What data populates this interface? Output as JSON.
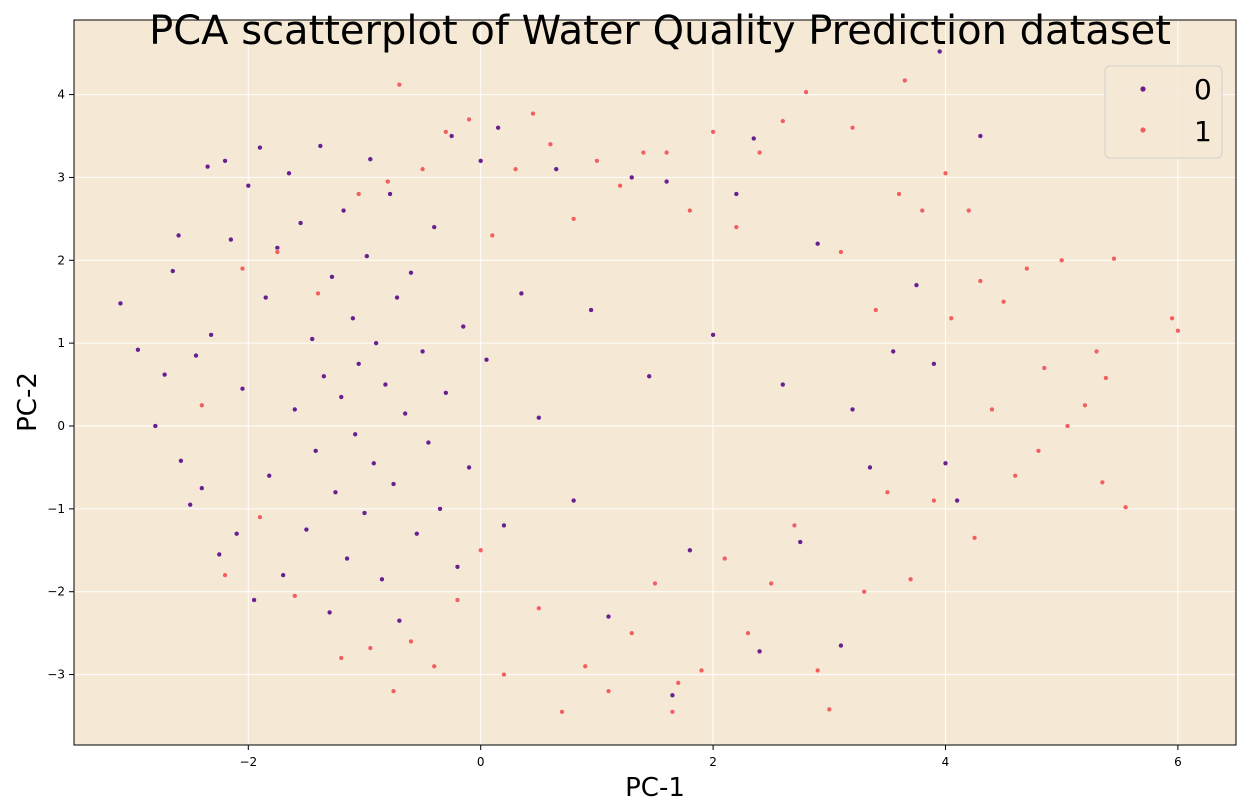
{
  "chart_data": {
    "type": "scatter",
    "title": "PCA scatterplot of Water Quality Prediction dataset",
    "xlabel": "PC-1",
    "ylabel": "PC-2",
    "xlim": [
      -3.5,
      6.5
    ],
    "ylim": [
      -3.85,
      4.9
    ],
    "xticks": [
      -2,
      0,
      2,
      4,
      6
    ],
    "xtick_labels": [
      "−2",
      "0",
      "2",
      "4",
      "6"
    ],
    "yticks": [
      -3,
      -2,
      -1,
      0,
      1,
      2,
      3,
      4
    ],
    "ytick_labels": [
      "−3",
      "−2",
      "−1",
      "0",
      "1",
      "2",
      "3",
      "4"
    ],
    "grid": true,
    "background_color": "#f5e8d5",
    "legend_placement": "top-right",
    "series": [
      {
        "name": "0",
        "color": "#6a1f8a",
        "points": [
          [
            -3.1,
            1.48
          ],
          [
            -2.95,
            0.92
          ],
          [
            -2.8,
            0.0
          ],
          [
            -2.72,
            0.62
          ],
          [
            -2.65,
            1.87
          ],
          [
            -2.6,
            2.3
          ],
          [
            -2.58,
            -0.42
          ],
          [
            -2.5,
            -0.95
          ],
          [
            -2.45,
            0.85
          ],
          [
            -2.4,
            -0.75
          ],
          [
            -2.35,
            3.13
          ],
          [
            -2.32,
            1.1
          ],
          [
            -2.25,
            -1.55
          ],
          [
            -2.2,
            3.2
          ],
          [
            -2.15,
            2.25
          ],
          [
            -2.1,
            -1.3
          ],
          [
            -2.05,
            0.45
          ],
          [
            -2.0,
            2.9
          ],
          [
            -1.95,
            -2.1
          ],
          [
            -1.9,
            3.36
          ],
          [
            -1.85,
            1.55
          ],
          [
            -1.82,
            -0.6
          ],
          [
            -1.75,
            2.15
          ],
          [
            -1.7,
            -1.8
          ],
          [
            -1.65,
            3.05
          ],
          [
            -1.6,
            0.2
          ],
          [
            -1.55,
            2.45
          ],
          [
            -1.5,
            -1.25
          ],
          [
            -1.45,
            1.05
          ],
          [
            -1.42,
            -0.3
          ],
          [
            -1.38,
            3.38
          ],
          [
            -1.35,
            0.6
          ],
          [
            -1.3,
            -2.25
          ],
          [
            -1.28,
            1.8
          ],
          [
            -1.25,
            -0.8
          ],
          [
            -1.2,
            0.35
          ],
          [
            -1.18,
            2.6
          ],
          [
            -1.15,
            -1.6
          ],
          [
            -1.1,
            1.3
          ],
          [
            -1.08,
            -0.1
          ],
          [
            -1.05,
            0.75
          ],
          [
            -1.0,
            -1.05
          ],
          [
            -0.98,
            2.05
          ],
          [
            -0.95,
            3.22
          ],
          [
            -0.92,
            -0.45
          ],
          [
            -0.9,
            1.0
          ],
          [
            -0.85,
            -1.85
          ],
          [
            -0.82,
            0.5
          ],
          [
            -0.78,
            2.8
          ],
          [
            -0.75,
            -0.7
          ],
          [
            -0.72,
            1.55
          ],
          [
            -0.7,
            -2.35
          ],
          [
            -0.65,
            0.15
          ],
          [
            -0.6,
            1.85
          ],
          [
            -0.55,
            -1.3
          ],
          [
            -0.5,
            0.9
          ],
          [
            -0.45,
            -0.2
          ],
          [
            -0.4,
            2.4
          ],
          [
            -0.35,
            -1.0
          ],
          [
            -0.3,
            0.4
          ],
          [
            -0.25,
            3.5
          ],
          [
            -0.2,
            -1.7
          ],
          [
            -0.15,
            1.2
          ],
          [
            -0.1,
            -0.5
          ],
          [
            0.0,
            3.2
          ],
          [
            0.05,
            0.8
          ],
          [
            0.15,
            3.6
          ],
          [
            0.2,
            -1.2
          ],
          [
            0.35,
            1.6
          ],
          [
            0.5,
            0.1
          ],
          [
            0.65,
            3.1
          ],
          [
            0.8,
            -0.9
          ],
          [
            0.95,
            1.4
          ],
          [
            1.1,
            -2.3
          ],
          [
            1.3,
            3.0
          ],
          [
            1.45,
            0.6
          ],
          [
            1.6,
            2.95
          ],
          [
            1.65,
            -3.25
          ],
          [
            1.8,
            -1.5
          ],
          [
            2.0,
            1.1
          ],
          [
            2.2,
            2.8
          ],
          [
            2.35,
            3.47
          ],
          [
            2.4,
            -2.72
          ],
          [
            2.6,
            0.5
          ],
          [
            2.75,
            -1.4
          ],
          [
            2.9,
            2.2
          ],
          [
            3.1,
            -2.65
          ],
          [
            3.2,
            0.2
          ],
          [
            3.35,
            -0.5
          ],
          [
            3.55,
            0.9
          ],
          [
            3.75,
            1.7
          ],
          [
            3.9,
            0.75
          ],
          [
            3.95,
            4.52
          ],
          [
            4.0,
            -0.45
          ],
          [
            4.1,
            -0.9
          ],
          [
            4.3,
            3.5
          ]
        ]
      },
      {
        "name": "1",
        "color": "#f0605d",
        "points": [
          [
            -2.4,
            0.25
          ],
          [
            -2.2,
            -1.8
          ],
          [
            -2.05,
            1.9
          ],
          [
            -1.9,
            -1.1
          ],
          [
            -1.75,
            2.1
          ],
          [
            -1.6,
            -2.05
          ],
          [
            -1.4,
            1.6
          ],
          [
            -1.2,
            -2.8
          ],
          [
            -1.05,
            2.8
          ],
          [
            -0.95,
            -2.68
          ],
          [
            -0.8,
            2.95
          ],
          [
            -0.75,
            -3.2
          ],
          [
            -0.7,
            4.12
          ],
          [
            -0.6,
            -2.6
          ],
          [
            -0.5,
            3.1
          ],
          [
            -0.4,
            -2.9
          ],
          [
            -0.3,
            3.55
          ],
          [
            -0.2,
            -2.1
          ],
          [
            -0.1,
            3.7
          ],
          [
            0.0,
            -1.5
          ],
          [
            0.1,
            2.3
          ],
          [
            0.2,
            -3.0
          ],
          [
            0.3,
            3.1
          ],
          [
            0.45,
            3.77
          ],
          [
            0.5,
            -2.2
          ],
          [
            0.6,
            3.4
          ],
          [
            0.7,
            -3.45
          ],
          [
            0.8,
            2.5
          ],
          [
            0.9,
            -2.9
          ],
          [
            1.0,
            3.2
          ],
          [
            1.1,
            -3.2
          ],
          [
            1.2,
            2.9
          ],
          [
            1.3,
            -2.5
          ],
          [
            1.4,
            3.3
          ],
          [
            1.5,
            -1.9
          ],
          [
            1.6,
            3.3
          ],
          [
            1.65,
            -3.45
          ],
          [
            1.7,
            -3.1
          ],
          [
            1.8,
            2.6
          ],
          [
            1.9,
            -2.95
          ],
          [
            2.0,
            3.55
          ],
          [
            2.1,
            -1.6
          ],
          [
            2.2,
            2.4
          ],
          [
            2.3,
            -2.5
          ],
          [
            2.4,
            3.3
          ],
          [
            2.5,
            -1.9
          ],
          [
            2.6,
            3.68
          ],
          [
            2.7,
            -1.2
          ],
          [
            2.8,
            4.03
          ],
          [
            2.9,
            -2.95
          ],
          [
            3.0,
            -3.42
          ],
          [
            3.1,
            2.1
          ],
          [
            3.2,
            3.6
          ],
          [
            3.3,
            -2.0
          ],
          [
            3.4,
            1.4
          ],
          [
            3.5,
            -0.8
          ],
          [
            3.6,
            2.8
          ],
          [
            3.65,
            4.17
          ],
          [
            3.7,
            -1.85
          ],
          [
            3.8,
            2.6
          ],
          [
            3.9,
            -0.9
          ],
          [
            4.0,
            3.05
          ],
          [
            4.05,
            1.3
          ],
          [
            4.2,
            2.6
          ],
          [
            4.25,
            -1.35
          ],
          [
            4.3,
            1.75
          ],
          [
            4.4,
            0.2
          ],
          [
            4.5,
            1.5
          ],
          [
            4.6,
            -0.6
          ],
          [
            4.7,
            1.9
          ],
          [
            4.8,
            -0.3
          ],
          [
            4.85,
            0.7
          ],
          [
            5.0,
            2.0
          ],
          [
            5.05,
            0.0
          ],
          [
            5.2,
            0.25
          ],
          [
            5.3,
            0.9
          ],
          [
            5.35,
            -0.68
          ],
          [
            5.38,
            0.58
          ],
          [
            5.45,
            2.02
          ],
          [
            5.55,
            -0.98
          ],
          [
            5.95,
            1.3
          ],
          [
            6.0,
            1.15
          ]
        ]
      }
    ]
  }
}
